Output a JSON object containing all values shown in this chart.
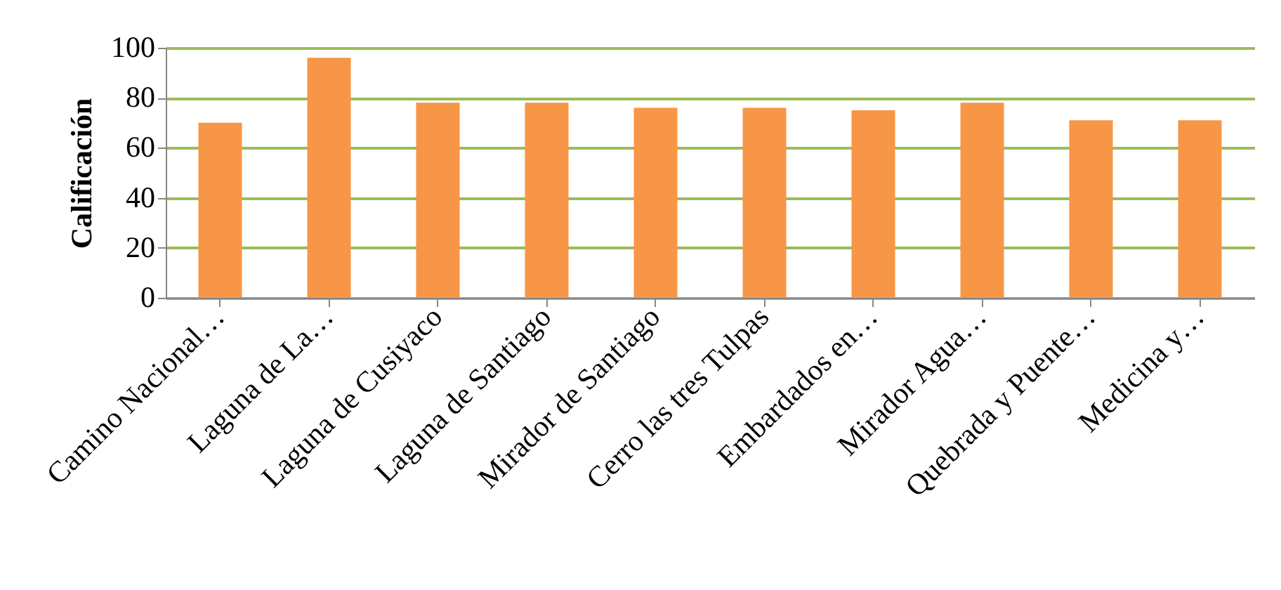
{
  "chart_data": {
    "type": "bar",
    "ylabel": "Calificación",
    "categories": [
      "Camino Nacional…",
      "Laguna de La…",
      "Laguna de Cusiyaco",
      "Laguna de Santiago",
      "Mirador de Santiago",
      "Cerro las tres Tulpas",
      "Embardados en…",
      "Mirador Agua…",
      "Quebrada y Puente…",
      "Medicina y…"
    ],
    "values": [
      70,
      96,
      78,
      78,
      76,
      76,
      75,
      78,
      71,
      71
    ],
    "color": "#f79646",
    "ylim": [
      0,
      100
    ],
    "yticks": [
      0,
      20,
      40,
      60,
      80,
      100
    ],
    "grid": "y"
  }
}
